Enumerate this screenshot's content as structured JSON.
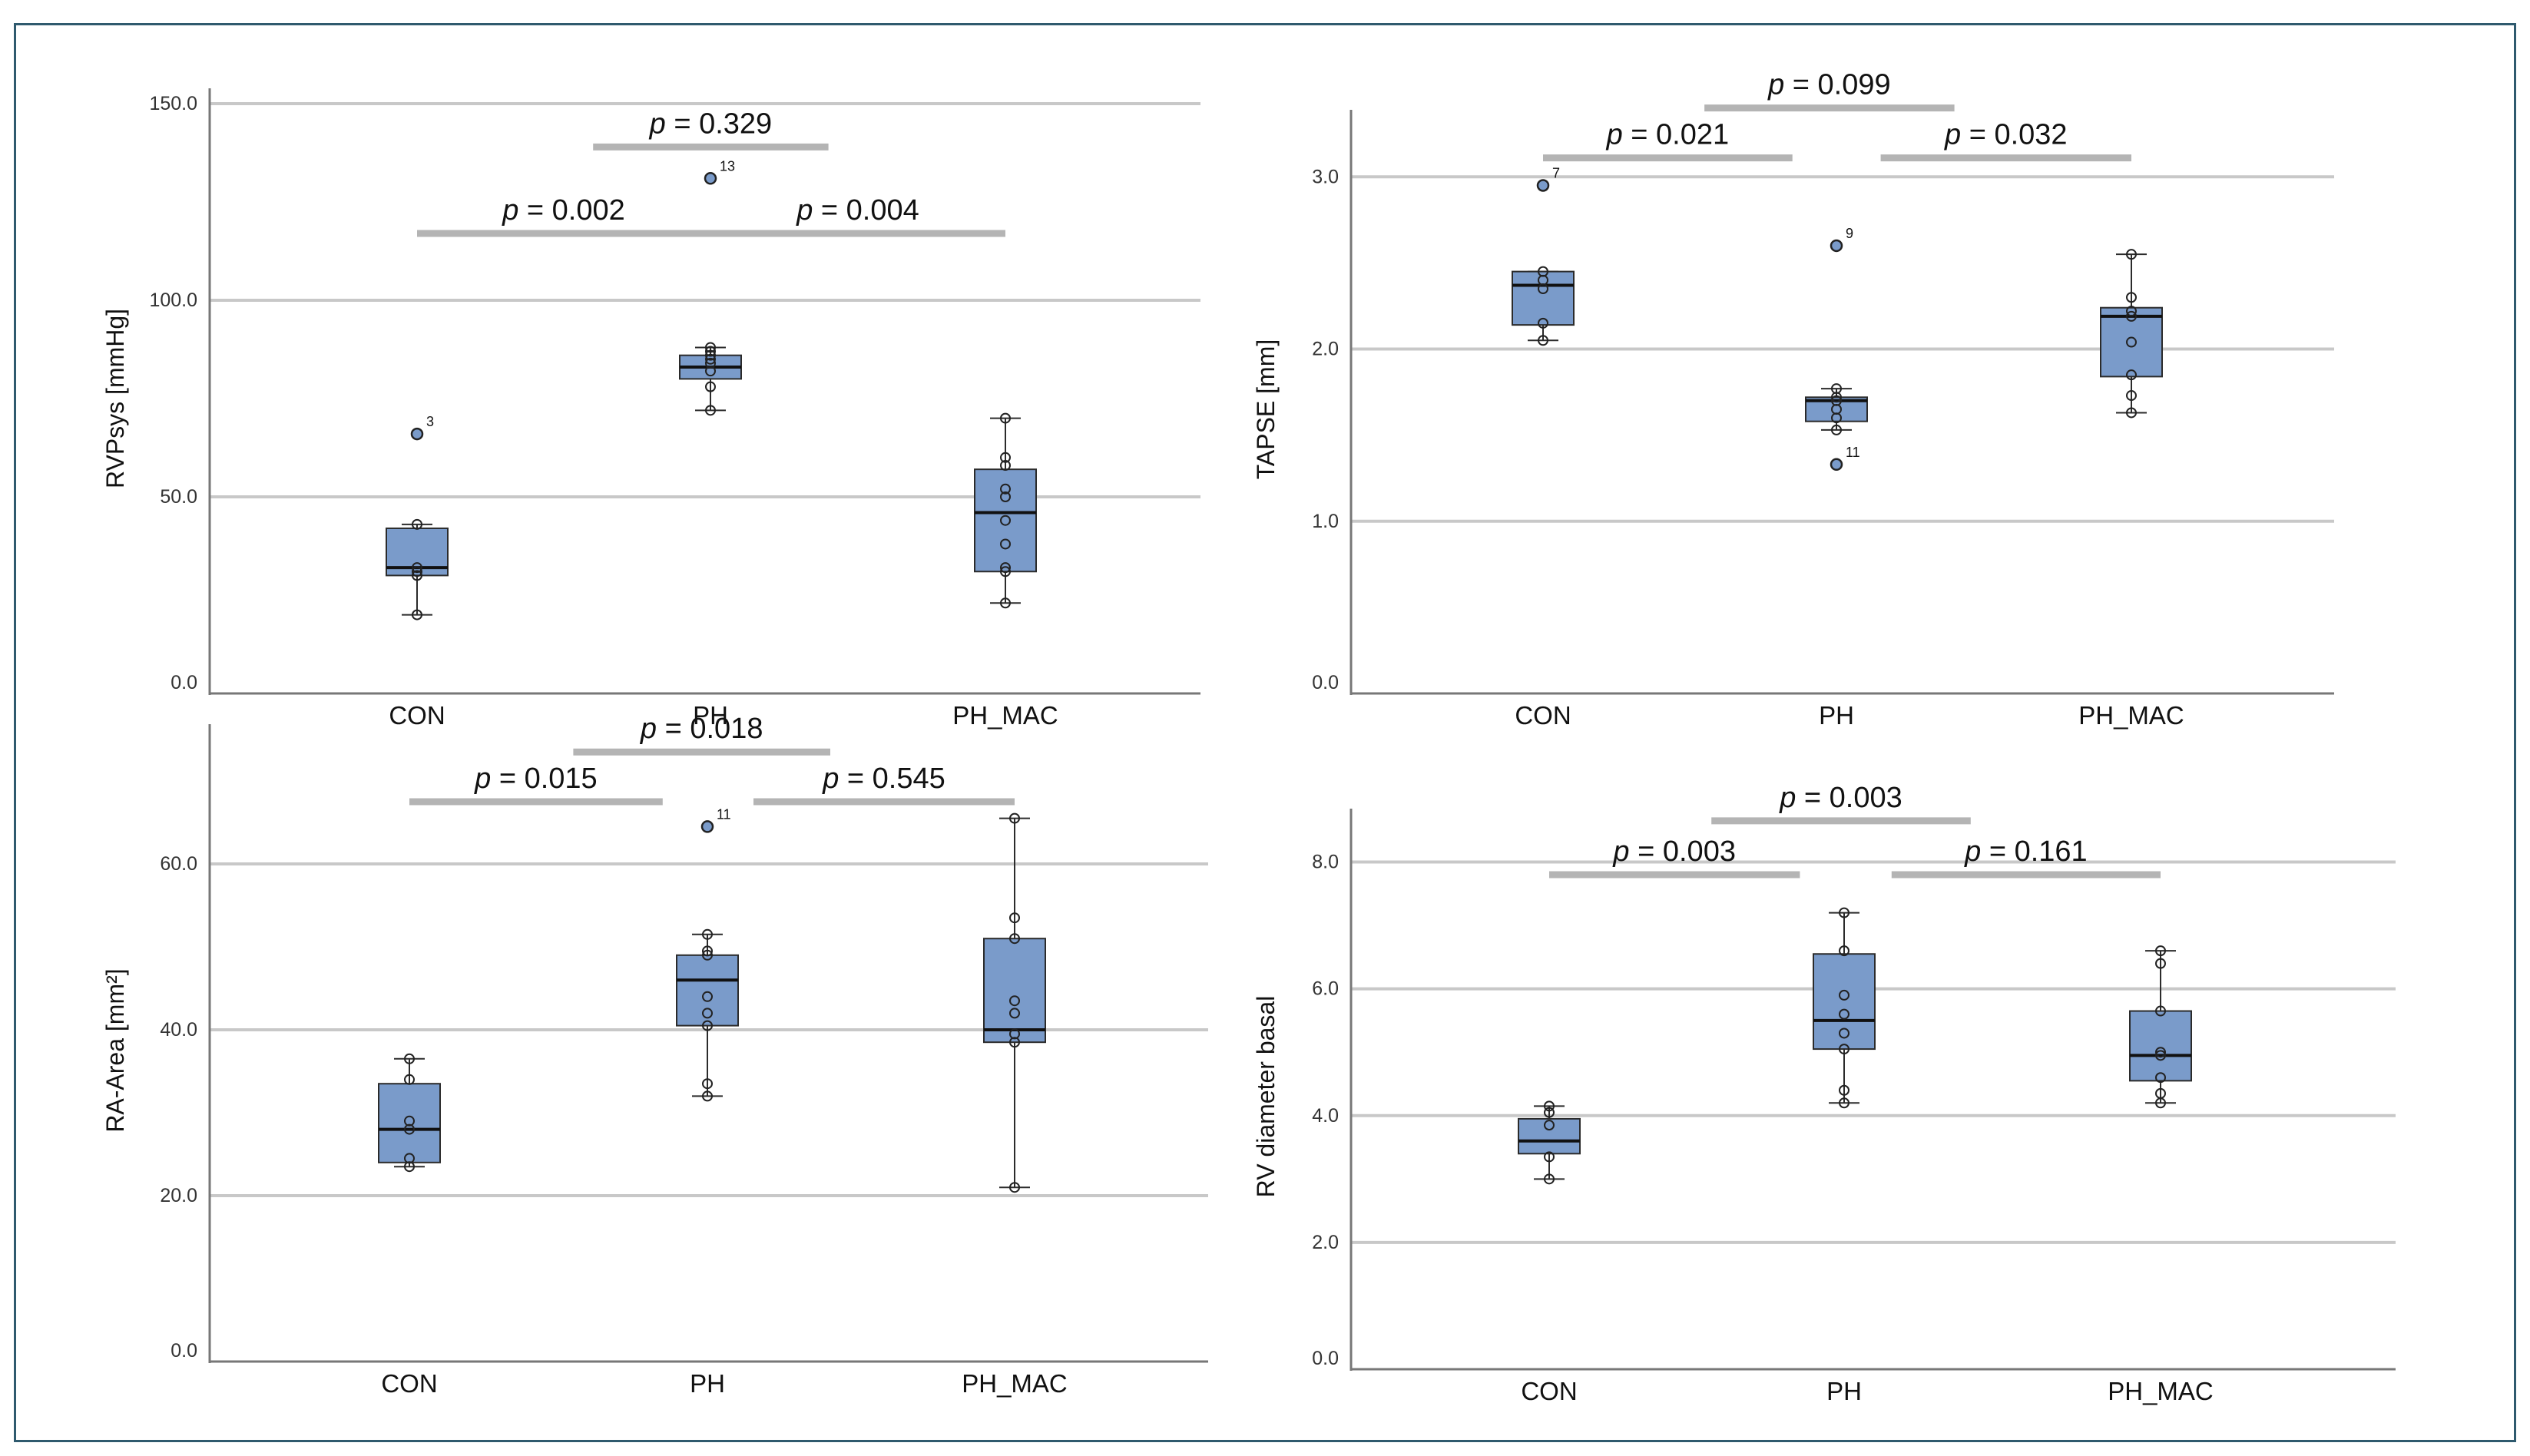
{
  "chart_data": [
    {
      "id": "rvpsys",
      "type": "box",
      "ylabel": "RVPsys [mmHg]",
      "categories": [
        "CON",
        "PH",
        "PH_MAC"
      ],
      "ylim": [
        0,
        150
      ],
      "yticks": [
        0,
        50,
        100,
        150
      ],
      "tick_labels": [
        "0.0",
        "50.0",
        "100.0",
        "150.0"
      ],
      "boxes": [
        {
          "min": 20,
          "q1": 30,
          "median": 32,
          "q3": 42,
          "max": 43,
          "points": [
            20,
            30,
            31,
            32,
            43
          ],
          "outliers": [
            {
              "value": 66,
              "label": "3"
            }
          ]
        },
        {
          "min": 72,
          "q1": 80,
          "median": 83,
          "q3": 86,
          "max": 88,
          "points": [
            72,
            78,
            82,
            84,
            85,
            86,
            87,
            88
          ],
          "outliers": [
            {
              "value": 131,
              "label": "13"
            }
          ]
        },
        {
          "min": 23,
          "q1": 31,
          "median": 46,
          "q3": 57,
          "max": 70,
          "points": [
            23,
            31,
            32,
            38,
            44,
            50,
            52,
            58,
            60,
            70
          ],
          "outliers": []
        }
      ],
      "comparisons": [
        {
          "from": 0,
          "to": 1,
          "value": 117,
          "label": "p = 0.002"
        },
        {
          "from": 1,
          "to": 2,
          "value": 117,
          "label": "p = 0.004"
        },
        {
          "from": 0.6,
          "to": 1.4,
          "value": 139,
          "label": "p = 0.329"
        }
      ]
    },
    {
      "id": "tapse",
      "type": "box",
      "ylabel": "TAPSE [mm]",
      "categories": [
        "CON",
        "PH",
        "PH_MAC"
      ],
      "ylim": [
        0,
        3.3
      ],
      "yticks": [
        0,
        1,
        2,
        3
      ],
      "tick_labels": [
        "0.0",
        "1.0",
        "2.0",
        "3.0"
      ],
      "boxes": [
        {
          "min": 2.05,
          "q1": 2.14,
          "median": 2.37,
          "q3": 2.45,
          "max": 2.45,
          "points": [
            2.05,
            2.15,
            2.35,
            2.4,
            2.45
          ],
          "outliers": [
            {
              "value": 2.95,
              "label": "7"
            }
          ]
        },
        {
          "min": 1.53,
          "q1": 1.58,
          "median": 1.7,
          "q3": 1.72,
          "max": 1.77,
          "points": [
            1.53,
            1.6,
            1.65,
            1.7,
            1.72,
            1.77
          ],
          "outliers": [
            {
              "value": 2.6,
              "label": "9"
            },
            {
              "value": 1.33,
              "label": "11"
            }
          ]
        },
        {
          "min": 1.63,
          "q1": 1.84,
          "median": 2.19,
          "q3": 2.24,
          "max": 2.55,
          "points": [
            1.63,
            1.73,
            1.85,
            2.04,
            2.19,
            2.22,
            2.3,
            2.55
          ],
          "outliers": []
        }
      ],
      "comparisons": [
        {
          "from": 0,
          "to": 0.85,
          "value": 3.11,
          "label": "p = 0.021"
        },
        {
          "from": 1.15,
          "to": 2,
          "value": 3.11,
          "label": "p = 0.032"
        },
        {
          "from": 0.55,
          "to": 1.4,
          "value": 3.4,
          "label": "p = 0.099"
        }
      ]
    },
    {
      "id": "ra-area",
      "type": "box",
      "ylabel": "RA-Area [mm²]",
      "categories": [
        "CON",
        "PH",
        "PH_MAC"
      ],
      "ylim": [
        0,
        75
      ],
      "yticks": [
        0,
        20,
        40,
        60
      ],
      "tick_labels": [
        "0.0",
        "20.0",
        "40.0",
        "60.0"
      ],
      "boxes": [
        {
          "min": 23.5,
          "q1": 24,
          "median": 28,
          "q3": 33.5,
          "max": 36.5,
          "points": [
            23.5,
            24.5,
            28,
            29,
            34,
            36.5
          ],
          "outliers": []
        },
        {
          "min": 32,
          "q1": 40.5,
          "median": 46,
          "q3": 49,
          "max": 51.5,
          "points": [
            32,
            33.5,
            40.5,
            42,
            44,
            49,
            49.5,
            51.5
          ],
          "outliers": [
            {
              "value": 64.5,
              "label": "11"
            }
          ]
        },
        {
          "min": 21,
          "q1": 38.5,
          "median": 40,
          "q3": 51,
          "max": 65.5,
          "points": [
            21,
            38.5,
            39.5,
            42,
            43.5,
            51,
            53.5,
            65.5
          ],
          "outliers": []
        }
      ],
      "comparisons": [
        {
          "from": 0,
          "to": 0.85,
          "value": 67.5,
          "label": "p = 0.015"
        },
        {
          "from": 1.15,
          "to": 2,
          "value": 67.5,
          "label": "p = 0.545"
        },
        {
          "from": 0.55,
          "to": 1.4,
          "value": 73.5,
          "label": "p = 0.018"
        }
      ]
    },
    {
      "id": "rv-diameter",
      "type": "box",
      "ylabel": "RV diameter basal",
      "categories": [
        "CON",
        "PH",
        "PH_MAC"
      ],
      "ylim": [
        0,
        8.6
      ],
      "yticks": [
        0,
        2,
        4,
        6,
        8
      ],
      "tick_labels": [
        "0.0",
        "2.0",
        "4.0",
        "6.0",
        "8.0"
      ],
      "boxes": [
        {
          "min": 3,
          "q1": 3.4,
          "median": 3.6,
          "q3": 3.95,
          "max": 4.15,
          "points": [
            3,
            3.35,
            3.85,
            4.05,
            4.15
          ],
          "outliers": []
        },
        {
          "min": 4.2,
          "q1": 5.05,
          "median": 5.5,
          "q3": 6.55,
          "max": 7.2,
          "points": [
            4.2,
            4.4,
            5.05,
            5.3,
            5.6,
            5.9,
            6.6,
            7.2
          ],
          "outliers": []
        },
        {
          "min": 4.2,
          "q1": 4.55,
          "median": 4.95,
          "q3": 5.65,
          "max": 6.6,
          "points": [
            4.2,
            4.35,
            4.6,
            4.95,
            5.0,
            5.65,
            6.4,
            6.6
          ],
          "outliers": []
        }
      ],
      "comparisons": [
        {
          "from": 0,
          "to": 0.85,
          "value": 7.8,
          "label": "p = 0.003"
        },
        {
          "from": 1.15,
          "to": 2,
          "value": 7.8,
          "label": "p = 0.161"
        },
        {
          "from": 0.55,
          "to": 1.4,
          "value": 8.65,
          "label": "p = 0.003"
        }
      ]
    }
  ],
  "colors": {
    "box_fill": "#7a9bca",
    "box_stroke": "#2b2b2b",
    "grid": "#c8c8c8",
    "bracket": "#b4b4b4",
    "axis": "#777777",
    "frame": "#2f5a6e"
  }
}
